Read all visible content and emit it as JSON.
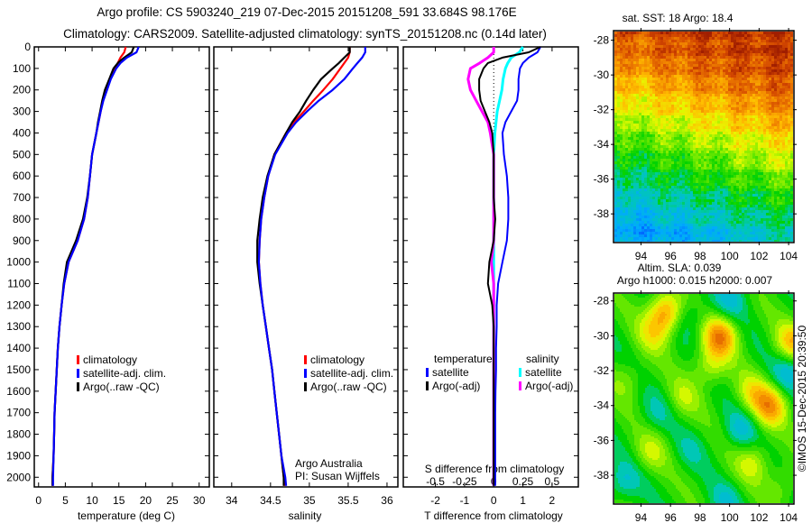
{
  "header": {
    "line1": "Argo profile: CS 5903240_219 07-Dec-2015 20151208_591 33.684S 98.176E",
    "line2": "Climatology: CARS2009. Satellite-adjusted climatology: synTS_20151208.nc (0.14d later)"
  },
  "colors": {
    "climatology": "#ff0000",
    "satellite": "#0000ff",
    "argo": "#000000",
    "s_satellite": "#00ffff",
    "s_argo": "#ff00ff"
  },
  "chart_data": [
    {
      "type": "line",
      "name": "temperature-profile",
      "xlabel": "temperature (deg C)",
      "xlim": [
        -0.8,
        31.9
      ],
      "xticks": [
        0,
        5,
        10,
        15,
        20,
        25,
        30
      ],
      "ylim": [
        0,
        2045
      ],
      "yticks": [
        0,
        100,
        200,
        300,
        400,
        500,
        600,
        700,
        800,
        900,
        1000,
        1100,
        1200,
        1300,
        1400,
        1500,
        1600,
        1700,
        1800,
        1900,
        2000
      ],
      "depth": [
        0,
        25,
        50,
        75,
        100,
        150,
        200,
        250,
        300,
        350,
        400,
        500,
        600,
        700,
        800,
        900,
        1000,
        1100,
        1200,
        1300,
        1400,
        1500,
        1600,
        1700,
        1800,
        1900,
        2000,
        2040
      ],
      "series": [
        {
          "name": "climatology",
          "color": "#ff0000",
          "values": [
            16.3,
            16.0,
            15.3,
            14.8,
            14.2,
            13.3,
            12.6,
            12.0,
            11.6,
            11.2,
            10.8,
            10.0,
            9.6,
            9.2,
            8.5,
            7.3,
            5.6,
            4.8,
            4.3,
            3.9,
            3.6,
            3.4,
            3.2,
            3.0,
            2.9,
            2.8,
            2.6,
            2.6
          ]
        },
        {
          "name": "satellite-adj. clim.",
          "color": "#0000ff",
          "values": [
            18.7,
            18.3,
            16.5,
            15.3,
            14.5,
            13.5,
            12.8,
            12.1,
            11.6,
            11.2,
            10.8,
            10.0,
            9.6,
            9.2,
            8.5,
            7.3,
            5.6,
            4.8,
            4.3,
            3.9,
            3.6,
            3.4,
            3.2,
            3.0,
            2.9,
            2.8,
            2.7,
            2.7
          ]
        },
        {
          "name": "Argo(..raw -QC)",
          "color": "#000000",
          "values": [
            17.8,
            17.4,
            16.0,
            14.8,
            14.0,
            13.2,
            12.4,
            11.9,
            11.5,
            11.1,
            10.8,
            10.0,
            9.6,
            9.1,
            8.3,
            7.0,
            5.3,
            4.7,
            4.3,
            3.9,
            3.6,
            3.4,
            3.2,
            3.0,
            2.9,
            2.8,
            2.6,
            2.6
          ]
        }
      ]
    },
    {
      "type": "line",
      "name": "salinity-profile",
      "xlabel": "salinity",
      "xlim": [
        33.77,
        36.14
      ],
      "xticks": [
        34,
        34.5,
        35,
        35.5,
        36
      ],
      "ylim": [
        0,
        2045
      ],
      "annotations": [
        "Argo Australia",
        "PI: Susan Wijffels"
      ],
      "depth": [
        0,
        25,
        50,
        75,
        100,
        150,
        200,
        250,
        300,
        350,
        400,
        500,
        600,
        700,
        800,
        900,
        1000,
        1100,
        1200,
        1300,
        1400,
        1500,
        1600,
        1700,
        1800,
        1900,
        2000,
        2040
      ],
      "series": [
        {
          "name": "climatology",
          "color": "#ff0000",
          "values": [
            35.52,
            35.52,
            35.5,
            35.45,
            35.4,
            35.3,
            35.18,
            35.05,
            34.93,
            34.8,
            34.7,
            34.55,
            34.47,
            34.42,
            34.38,
            34.36,
            34.35,
            34.37,
            34.4,
            34.44,
            34.48,
            34.52,
            34.55,
            34.58,
            34.61,
            34.64,
            34.67,
            34.68
          ]
        },
        {
          "name": "satellite-adj. clim.",
          "color": "#0000ff",
          "values": [
            35.72,
            35.72,
            35.68,
            35.62,
            35.56,
            35.45,
            35.3,
            35.12,
            34.97,
            34.83,
            34.72,
            34.56,
            34.47,
            34.42,
            34.38,
            34.36,
            34.35,
            34.37,
            34.4,
            34.44,
            34.48,
            34.52,
            34.55,
            34.58,
            34.61,
            34.64,
            34.69,
            34.7
          ]
        },
        {
          "name": "Argo(..raw -QC)",
          "color": "#000000",
          "values": [
            35.52,
            35.52,
            35.45,
            35.38,
            35.3,
            35.15,
            35.05,
            34.96,
            34.88,
            34.78,
            34.7,
            34.55,
            34.46,
            34.4,
            34.36,
            34.33,
            34.33,
            34.36,
            34.4,
            34.44,
            34.48,
            34.52,
            34.55,
            34.58,
            34.61,
            34.64,
            34.67,
            34.67
          ]
        }
      ]
    },
    {
      "type": "line",
      "name": "difference-profile",
      "xlabel": "T difference from climatology",
      "x2label": "S difference from climatology",
      "xlim": [
        -3.1,
        2.9
      ],
      "xticks": [
        -2,
        -1,
        0,
        1,
        2
      ],
      "x2lim": [
        -0.775,
        0.725
      ],
      "x2ticks": [
        -0.5,
        -0.25,
        0,
        0.25,
        0.5
      ],
      "ylim": [
        0,
        2045
      ],
      "legend_headers": {
        "temperature": "temperature",
        "salinity": "salinity"
      },
      "depth": [
        0,
        25,
        50,
        75,
        100,
        150,
        200,
        250,
        300,
        350,
        400,
        500,
        600,
        700,
        800,
        900,
        1000,
        1100,
        1200,
        1300,
        1400,
        1500,
        1600,
        1700,
        1800,
        1900,
        2000,
        2040
      ],
      "series": [
        {
          "name": "satellite",
          "group": "temperature",
          "axis": "T",
          "color": "#0000ff",
          "values": [
            1.6,
            1.5,
            1.2,
            1.0,
            0.9,
            0.85,
            0.85,
            0.8,
            0.6,
            0.4,
            0.3,
            0.35,
            0.45,
            0.5,
            0.5,
            0.45,
            0.3,
            0.15,
            0.1,
            0.1,
            0.08,
            0.08,
            0.06,
            0.05,
            0.05,
            0.05,
            0.05,
            0.05
          ]
        },
        {
          "name": "Argo(-adj)",
          "group": "temperature",
          "axis": "T",
          "color": "#000000",
          "values": [
            1.6,
            1.2,
            0.3,
            -0.2,
            -0.35,
            -0.5,
            -0.5,
            -0.45,
            -0.3,
            -0.15,
            -0.05,
            0,
            0,
            0,
            0.05,
            0,
            -0.15,
            -0.2,
            -0.05,
            0,
            0,
            0,
            0,
            0,
            0,
            0,
            0,
            0
          ]
        },
        {
          "name": "satellite",
          "group": "salinity",
          "axis": "S",
          "color": "#00ffff",
          "values": [
            0.25,
            0.22,
            0.15,
            0.12,
            0.1,
            0.08,
            0.07,
            0.05,
            0.03,
            0.02,
            0.01,
            0,
            0,
            0,
            0,
            0,
            0,
            0,
            0,
            0,
            0,
            0,
            0,
            0,
            0,
            0,
            0,
            0
          ]
        },
        {
          "name": "Argo(-adj)",
          "group": "salinity",
          "axis": "S",
          "color": "#ff00ff",
          "values": [
            0,
            0,
            -0.05,
            -0.12,
            -0.2,
            -0.22,
            -0.2,
            -0.15,
            -0.1,
            -0.05,
            -0.03,
            0,
            0,
            0,
            0,
            0,
            -0.02,
            0,
            0,
            0,
            0,
            0,
            0,
            0,
            0,
            0,
            0,
            0
          ]
        }
      ]
    },
    {
      "type": "heatmap",
      "name": "sst-map",
      "title": "sat. SST: 18 Argo: 18.4",
      "xlim": [
        92.2,
        104.3
      ],
      "xticks": [
        94,
        96,
        98,
        100,
        102,
        104
      ],
      "ylim": [
        -39.6,
        -27.5
      ],
      "yticks": [
        -28,
        -30,
        -32,
        -34,
        -36,
        -38
      ],
      "lat_profile": {
        "lat": [
          -27.5,
          -29,
          -30,
          -31,
          -32,
          -33,
          -34,
          -35,
          -36,
          -37,
          -38,
          -39,
          -39.6
        ],
        "index": [
          0.95,
          0.9,
          0.86,
          0.8,
          0.74,
          0.68,
          0.62,
          0.55,
          0.5,
          0.45,
          0.4,
          0.34,
          0.3
        ]
      }
    },
    {
      "type": "heatmap",
      "name": "sla-map",
      "title": "Altim. SLA: 0.039",
      "subtitle": "Argo h1000: 0.015 h2000: 0.007",
      "xlim": [
        92.2,
        104.3
      ],
      "xticks": [
        94,
        96,
        98,
        100,
        102,
        104
      ],
      "ylim": [
        -39.6,
        -27.6
      ],
      "yticks": [
        -28,
        -30,
        -32,
        -34,
        -36,
        -38
      ],
      "background_index": 0.52,
      "blobs": [
        {
          "lon": 95.6,
          "lat": -28.6,
          "index": 0.8
        },
        {
          "lon": 94.8,
          "lat": -29.8,
          "index": 0.66
        },
        {
          "lon": 99.3,
          "lat": -30.0,
          "index": 0.82
        },
        {
          "lon": 98.6,
          "lat": -31.7,
          "index": 0.66
        },
        {
          "lon": 102.7,
          "lat": -34.0,
          "index": 0.78
        },
        {
          "lon": 101.5,
          "lat": -33.2,
          "index": 0.66
        },
        {
          "lon": 104.2,
          "lat": -30.3,
          "index": 0.74
        },
        {
          "lon": 101.5,
          "lat": -37.2,
          "index": 0.66
        },
        {
          "lon": 94.6,
          "lat": -36.6,
          "index": 0.63
        },
        {
          "lon": 96.8,
          "lat": -33.5,
          "index": 0.62
        },
        {
          "lon": 100.0,
          "lat": -27.8,
          "index": 0.4
        },
        {
          "lon": 104.0,
          "lat": -32.0,
          "index": 0.38
        },
        {
          "lon": 100.7,
          "lat": -35.3,
          "index": 0.4
        },
        {
          "lon": 92.7,
          "lat": -38.3,
          "index": 0.4
        },
        {
          "lon": 99.7,
          "lat": -39.5,
          "index": 0.42
        },
        {
          "lon": 97.3,
          "lat": -28.8,
          "index": 0.44
        },
        {
          "lon": 95.0,
          "lat": -34.3,
          "index": 0.45
        },
        {
          "lon": 93.0,
          "lat": -32.5,
          "index": 0.6
        },
        {
          "lon": 97.3,
          "lat": -36.5,
          "index": 0.46
        },
        {
          "lon": 103.5,
          "lat": -38.5,
          "index": 0.6
        }
      ]
    }
  ],
  "footer": {
    "credit": "©IMOS 15-Dec-2015 20:39:50"
  }
}
